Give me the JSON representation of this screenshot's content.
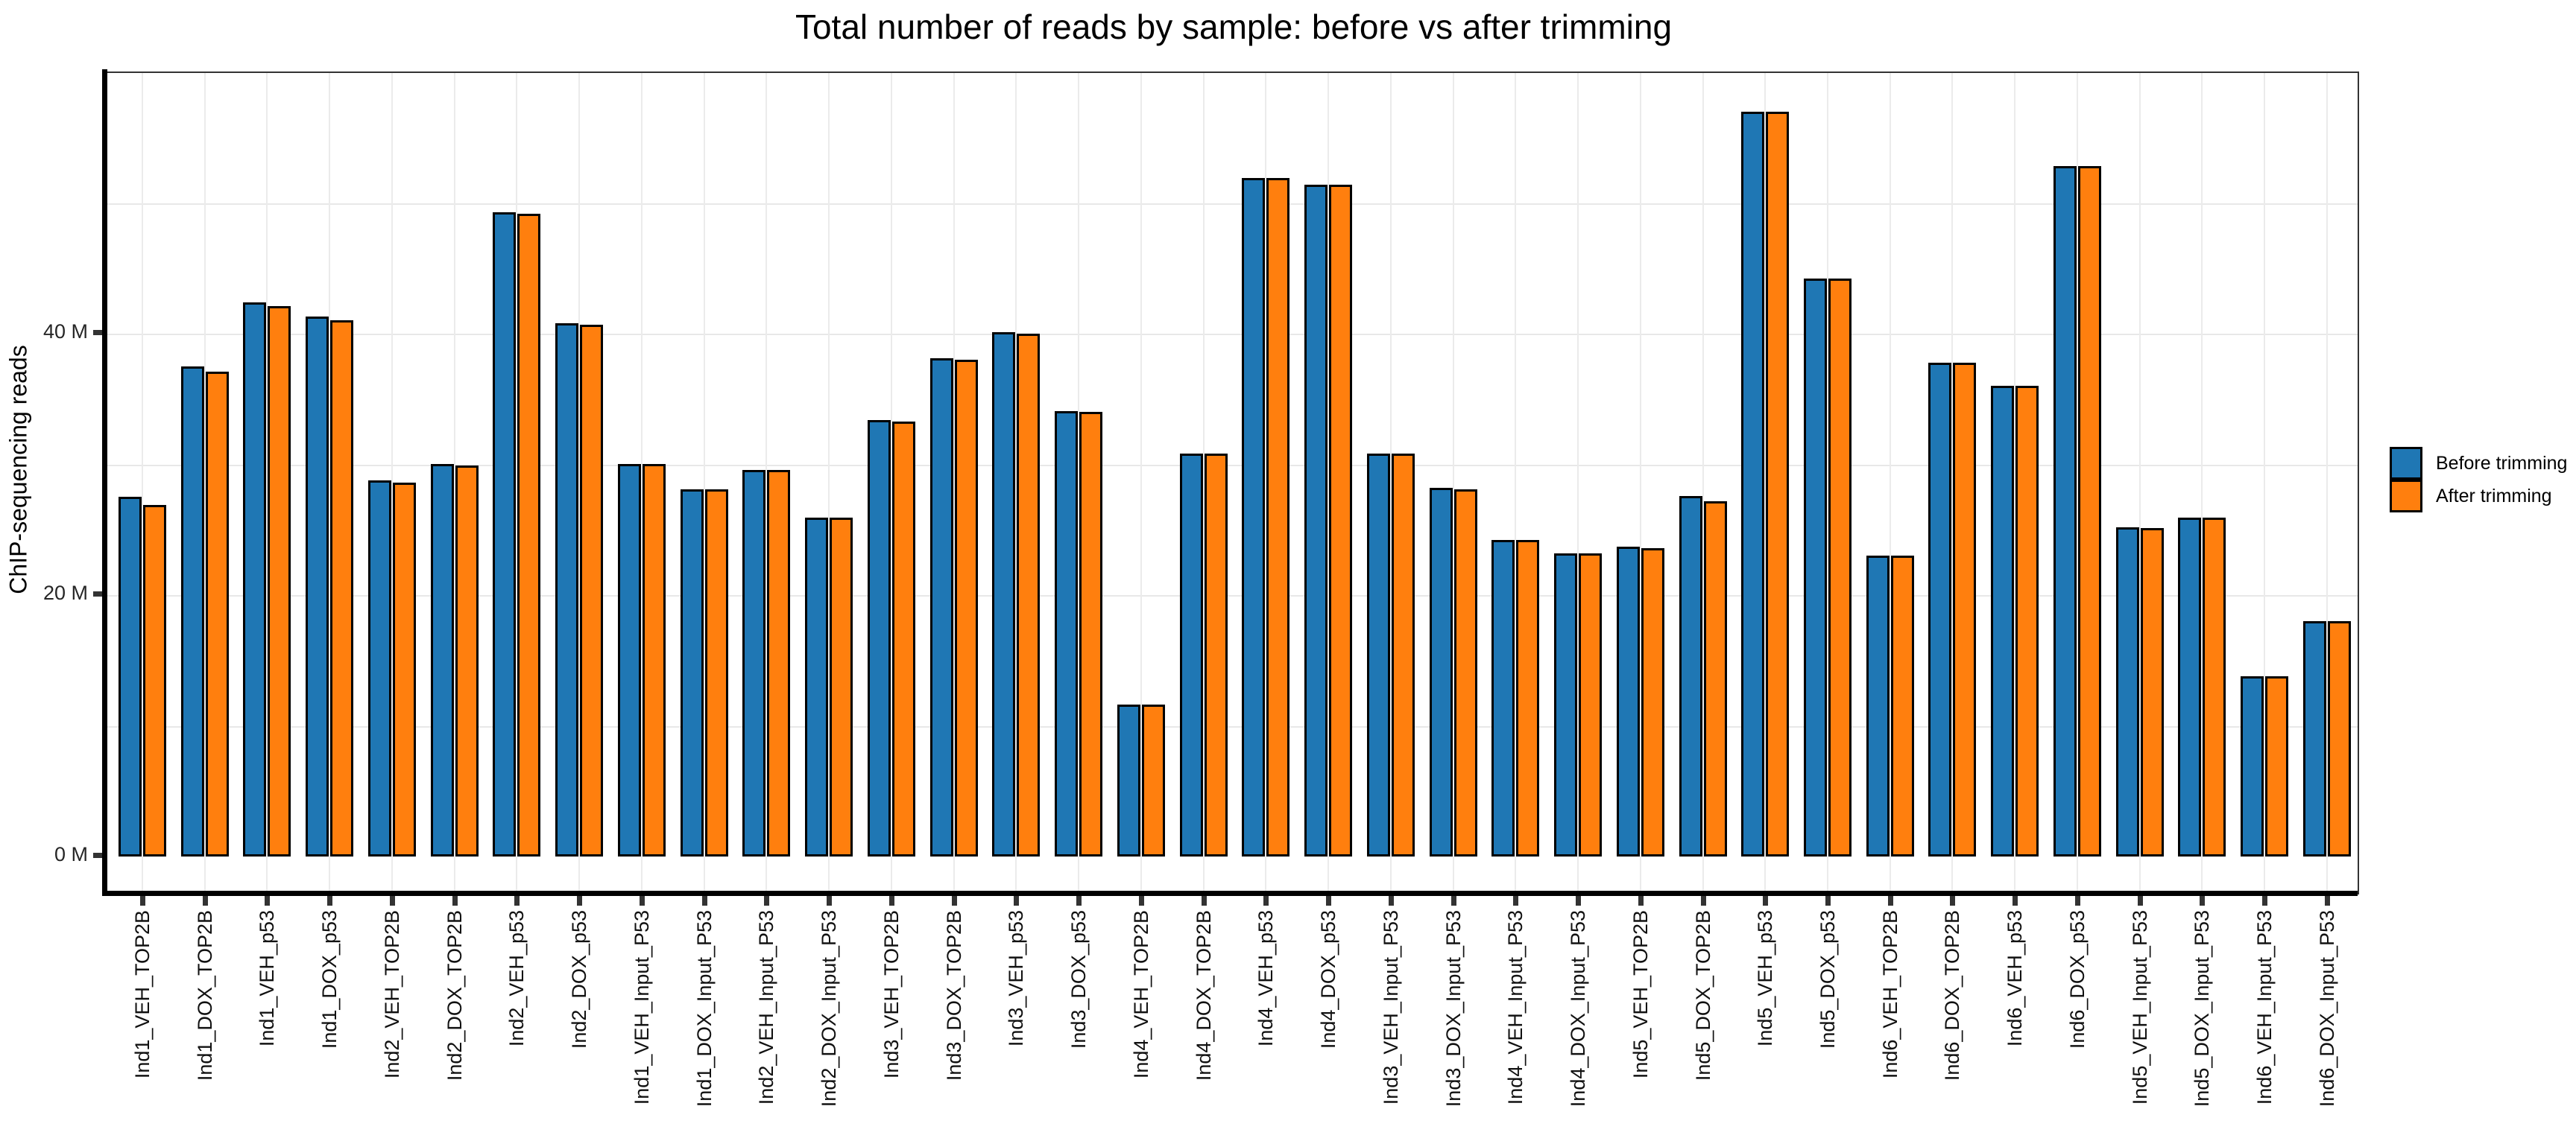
{
  "title": "Total number of reads by sample: before vs after trimming",
  "y_axis": {
    "label": "ChIP-sequencing reads",
    "ticks": [
      {
        "label": "0 M",
        "value": 0
      },
      {
        "label": "20 M",
        "value": 20
      },
      {
        "label": "40 M",
        "value": 40
      }
    ]
  },
  "legend": [
    {
      "label": "Before trimming",
      "color": "#1f77b4"
    },
    {
      "label": "After trimming",
      "color": "#ff7f0e"
    }
  ],
  "colors": {
    "before": "#1f77b4",
    "after": "#ff7f0e",
    "bar_outline": "#000000",
    "gridline": "#e8e8e8",
    "axis": "#000000",
    "panel_border": "#333333"
  },
  "chart_data": {
    "type": "bar",
    "title": "Total number of reads by sample: before vs after trimming",
    "xlabel": "",
    "ylabel": "ChIP-sequencing reads",
    "ylim": [
      0,
      60
    ],
    "yticks": [
      0,
      20,
      40
    ],
    "ytick_labels": [
      "0 M",
      "20 M",
      "40 M"
    ],
    "grid": "on",
    "legend_position": "right-center",
    "unit": "million reads",
    "categories": [
      "Ind1_VEH_TOP2B",
      "Ind1_DOX_TOP2B",
      "Ind1_VEH_p53",
      "Ind1_DOX_p53",
      "Ind2_VEH_TOP2B",
      "Ind2_DOX_TOP2B",
      "Ind2_VEH_p53",
      "Ind2_DOX_p53",
      "Ind1_VEH_Input_P53",
      "Ind1_DOX_Input_P53",
      "Ind2_VEH_Input_P53",
      "Ind2_DOX_Input_P53",
      "Ind3_VEH_TOP2B",
      "Ind3_DOX_TOP2B",
      "Ind3_VEH_p53",
      "Ind3_DOX_p53",
      "Ind4_VEH_TOP2B",
      "Ind4_DOX_TOP2B",
      "Ind4_VEH_p53",
      "Ind4_DOX_p53",
      "Ind3_VEH_Input_P53",
      "Ind3_DOX_Input_P53",
      "Ind4_VEH_Input_P53",
      "Ind4_DOX_Input_P53",
      "Ind5_VEH_TOP2B",
      "Ind5_DOX_TOP2B",
      "Ind5_VEH_p53",
      "Ind5_DOX_p53",
      "Ind6_VEH_TOP2B",
      "Ind6_DOX_TOP2B",
      "Ind6_VEH_p53",
      "Ind6_DOX_p53",
      "Ind5_VEH_Input_P53",
      "Ind5_DOX_Input_P53",
      "Ind6_VEH_Input_P53",
      "Ind6_DOX_Input_P53"
    ],
    "series": [
      {
        "name": "Before trimming",
        "color": "#1f77b4",
        "values": [
          27.5,
          37.5,
          42.4,
          41.3,
          28.8,
          30.0,
          49.3,
          40.8,
          30.0,
          28.1,
          29.6,
          25.9,
          33.4,
          38.1,
          40.1,
          34.1,
          11.6,
          30.8,
          51.9,
          51.4,
          30.8,
          28.2,
          24.2,
          23.2,
          23.7,
          27.6,
          57.0,
          44.2,
          23.0,
          37.8,
          36.0,
          52.8,
          25.2,
          25.9,
          13.8,
          18.0
        ]
      },
      {
        "name": "After trimming",
        "color": "#ff7f0e",
        "values": [
          26.9,
          37.1,
          42.1,
          41.0,
          28.6,
          29.9,
          49.2,
          40.7,
          30.0,
          28.1,
          29.6,
          25.9,
          33.3,
          38.0,
          40.0,
          34.0,
          11.6,
          30.8,
          51.9,
          51.4,
          30.8,
          28.1,
          24.2,
          23.2,
          23.6,
          27.2,
          57.0,
          44.2,
          23.0,
          37.8,
          36.0,
          52.8,
          25.1,
          25.9,
          13.8,
          18.0
        ]
      }
    ]
  }
}
